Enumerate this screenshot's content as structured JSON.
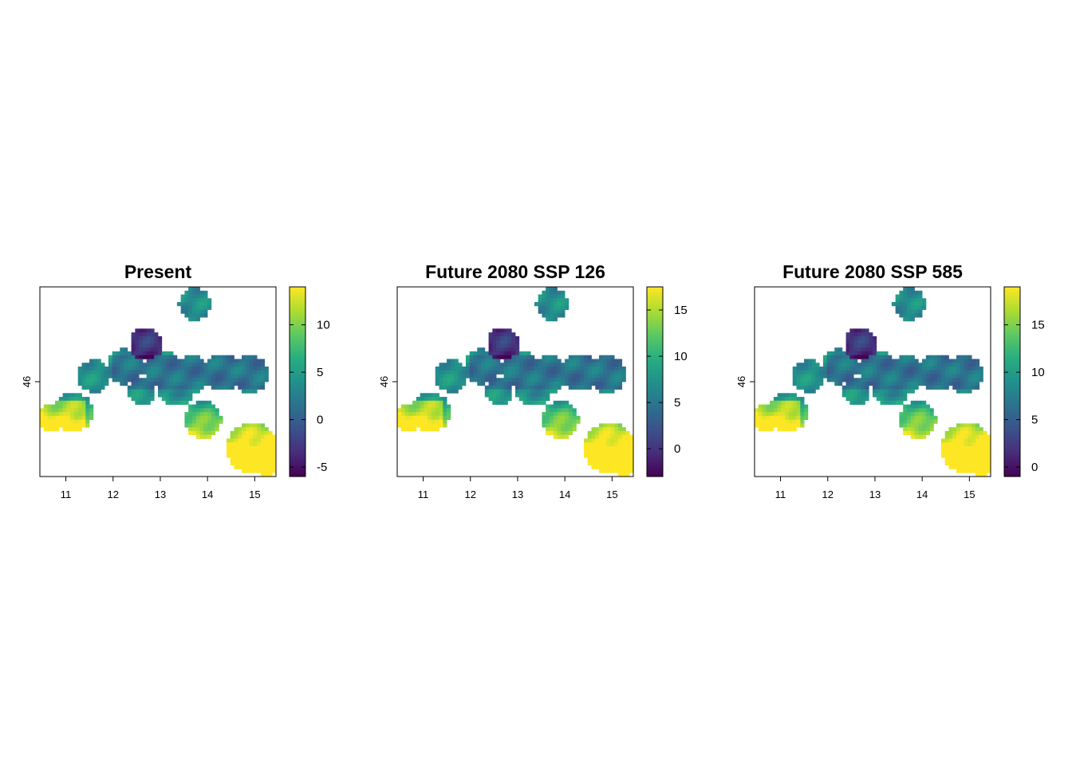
{
  "figure": {
    "background": "#ffffff"
  },
  "colormap": "viridis",
  "chart_data": [
    {
      "type": "heatmap",
      "title": "Present",
      "xlabel": "",
      "ylabel": "",
      "xlim": [
        10.45,
        15.45
      ],
      "ylim": [
        45.55,
        46.45
      ],
      "x_ticks": [
        "11",
        "12",
        "13",
        "14",
        "15"
      ],
      "y_ticks": [
        "46"
      ],
      "colorbar": {
        "range": [
          -6,
          14
        ],
        "ticks": [
          "-5",
          "0",
          "5",
          "10"
        ]
      },
      "value_summary": {
        "north_massif_min": -5,
        "central_band": 3,
        "southern_lowlands_max": 14
      }
    },
    {
      "type": "heatmap",
      "title": "Future 2080 SSP 126",
      "xlabel": "",
      "ylabel": "",
      "xlim": [
        10.45,
        15.45
      ],
      "ylim": [
        45.55,
        46.45
      ],
      "x_ticks": [
        "11",
        "12",
        "13",
        "14",
        "15"
      ],
      "y_ticks": [
        "46"
      ],
      "colorbar": {
        "range": [
          -3,
          17.5
        ],
        "ticks": [
          "0",
          "5",
          "10",
          "15"
        ]
      },
      "value_summary": {
        "north_massif_min": -2,
        "central_band": 6,
        "southern_lowlands_max": 17
      }
    },
    {
      "type": "heatmap",
      "title": "Future 2080 SSP 585",
      "xlabel": "",
      "ylabel": "",
      "xlim": [
        10.45,
        15.45
      ],
      "ylim": [
        45.55,
        46.45
      ],
      "x_ticks": [
        "11",
        "12",
        "13",
        "14",
        "15"
      ],
      "y_ticks": [
        "46"
      ],
      "colorbar": {
        "range": [
          -1,
          19
        ],
        "ticks": [
          "0",
          "5",
          "10",
          "15"
        ]
      },
      "value_summary": {
        "north_massif_min": 1,
        "central_band": 8,
        "southern_lowlands_max": 19
      }
    }
  ]
}
